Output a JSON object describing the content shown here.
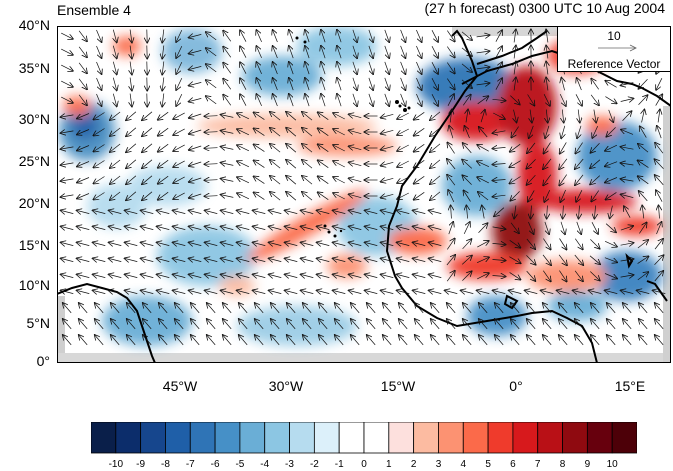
{
  "header": {
    "left_title": "Ensemble 4",
    "right_title": "(27 h forecast) 0300 UTC 10 Aug 2004"
  },
  "map": {
    "lat_labels": [
      "40°N",
      "35°N",
      "30°N",
      "25°N",
      "20°N",
      "15°N",
      "10°N",
      "5°N",
      "0°"
    ],
    "lon_labels": [
      "45°W",
      "30°W",
      "15°W",
      "0°",
      "15°E"
    ],
    "extent": {
      "lon_min": -57,
      "lon_max": 20,
      "lat_min": 0,
      "lat_max": 40
    }
  },
  "reference_vector": {
    "value": "10",
    "label": "Reference Vector"
  },
  "colorbar": {
    "labels": [
      "-10",
      "-9",
      "-8",
      "-7",
      "-6",
      "-5",
      "-4",
      "-3",
      "-2",
      "-1",
      "0",
      "1",
      "2",
      "3",
      "4",
      "5",
      "6",
      "7",
      "8",
      "9",
      "10"
    ],
    "colors": [
      "#0a1f4a",
      "#0c2d6b",
      "#16468d",
      "#1f5fa8",
      "#2f74b6",
      "#4690c7",
      "#6aaed6",
      "#8cc6e3",
      "#b6dcef",
      "#dcf0fa",
      "#ffffff",
      "#ffffff",
      "#fde0dd",
      "#fcbba1",
      "#fc9272",
      "#fb6a4a",
      "#ef3b2c",
      "#d7191c",
      "#b91016",
      "#8f0a10",
      "#67000d",
      "#4d0008"
    ]
  },
  "colors": {
    "warm_anomaly": "#e84b3a",
    "cool_anomaly": "#4a8fc2",
    "frame": "#000000",
    "boundary": "#000000"
  }
}
